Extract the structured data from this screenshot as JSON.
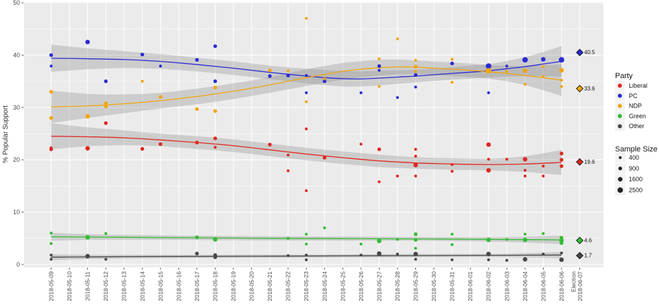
{
  "figure": {
    "y_axis": {
      "title": "% Popular Support",
      "ticks": [
        0,
        10,
        20,
        30,
        40,
        50
      ],
      "minor_ticks": [
        5,
        15,
        25,
        35,
        45
      ],
      "lim": [
        0,
        50
      ]
    },
    "x_axis": {
      "dates": [
        "2018-05-09",
        "2018-05-10",
        "2018-05-11",
        "2018-05-12",
        "2018-05-13",
        "2018-05-14",
        "2018-05-15",
        "2018-05-16",
        "2018-05-17",
        "2018-05-18",
        "2018-05-19",
        "2018-05-20",
        "2018-05-21",
        "2018-05-22",
        "2018-05-23",
        "2018-05-24",
        "2018-05-25",
        "2018-05-26",
        "2018-05-27",
        "2018-05-28",
        "2018-05-29",
        "2018-05-30",
        "2018-05-31",
        "2018-06-01",
        "2018-06-02",
        "2018-06-03",
        "2018-06-04",
        "2018-06-05",
        "2018-06-06"
      ],
      "election_label": [
        "Election",
        "2018-06-07"
      ]
    },
    "legend": {
      "party": {
        "title": "Party",
        "items": [
          {
            "label": "Liberal",
            "color": "#e0271f"
          },
          {
            "label": "PC",
            "color": "#2b2bd5"
          },
          {
            "label": "NDP",
            "color": "#f2a50c"
          },
          {
            "label": "Green",
            "color": "#32bd32"
          },
          {
            "label": "Other",
            "color": "#474747"
          }
        ]
      },
      "sample_size": {
        "title": "Sample Size",
        "items": [
          {
            "label": "400",
            "r": 2.1
          },
          {
            "label": "900",
            "r": 2.7
          },
          {
            "label": "1600",
            "r": 3.3
          },
          {
            "label": "2500",
            "r": 4.0
          }
        ]
      }
    },
    "colors": {
      "panel_bg": "#ebebeb",
      "grid": "#ffffff",
      "ribbon": "#8f8f8f",
      "tick_text": "#4a4a4a",
      "axis_title": "#2f2f2f"
    }
  },
  "chart_data": {
    "type": "scatter",
    "title": "",
    "xlabel": "",
    "ylabel": "% Popular Support",
    "ylim": [
      0,
      50
    ],
    "x_unit": "day index from 2018-05-09; 29 = election day 2018-06-07",
    "sample_sizes": [
      400,
      900,
      1600,
      2500
    ],
    "size_radii": [
      2.1,
      2.7,
      3.3,
      4.0
    ],
    "series": [
      {
        "name": "Liberal",
        "color": "#e0271f",
        "election_result": 19.6,
        "election_label": "19.6",
        "points": [
          [
            0,
            22.0,
            1
          ],
          [
            0,
            22.3,
            0
          ],
          [
            2,
            22.2,
            2
          ],
          [
            3,
            27.0,
            1
          ],
          [
            5,
            22.1,
            1
          ],
          [
            6,
            23.0,
            1
          ],
          [
            8,
            23.3,
            1
          ],
          [
            9,
            24.1,
            1
          ],
          [
            9,
            22.4,
            0
          ],
          [
            12,
            22.9,
            1
          ],
          [
            13,
            20.9,
            0
          ],
          [
            13,
            17.9,
            0
          ],
          [
            14,
            25.9,
            0
          ],
          [
            14,
            14.1,
            0
          ],
          [
            15,
            20.4,
            1
          ],
          [
            17,
            23.0,
            0
          ],
          [
            18,
            22.0,
            1
          ],
          [
            18,
            15.8,
            0
          ],
          [
            19,
            16.9,
            0
          ],
          [
            20,
            22.0,
            0
          ],
          [
            20,
            20.7,
            0
          ],
          [
            20,
            19.0,
            2
          ],
          [
            20,
            16.9,
            0
          ],
          [
            22,
            19.1,
            0
          ],
          [
            22,
            17.8,
            0
          ],
          [
            24,
            22.9,
            2
          ],
          [
            24,
            20.1,
            0
          ],
          [
            24,
            18.0,
            2
          ],
          [
            25,
            20.1,
            0
          ],
          [
            26,
            20.1,
            2
          ],
          [
            26,
            18.0,
            0
          ],
          [
            26,
            16.9,
            0
          ],
          [
            27,
            18.8,
            0
          ],
          [
            27,
            16.9,
            0
          ],
          [
            28,
            21.2,
            1
          ],
          [
            28,
            20.0,
            1
          ],
          [
            28,
            18.8,
            1
          ]
        ],
        "trend": [
          [
            0,
            24.5,
            2.5
          ],
          [
            2,
            24.4,
            1.8
          ],
          [
            4,
            24.2,
            1.4
          ],
          [
            6,
            23.8,
            1.2
          ],
          [
            8,
            23.3,
            1.2
          ],
          [
            10,
            22.7,
            1.2
          ],
          [
            12,
            21.9,
            1.2
          ],
          [
            14,
            21.1,
            1.2
          ],
          [
            16,
            20.4,
            1.2
          ],
          [
            18,
            19.8,
            1.2
          ],
          [
            20,
            19.4,
            1.1
          ],
          [
            22,
            19.2,
            1.1
          ],
          [
            24,
            19.1,
            1.1
          ],
          [
            26,
            19.2,
            1.5
          ],
          [
            28,
            19.5,
            2.4
          ]
        ]
      },
      {
        "name": "PC",
        "color": "#2b2bd5",
        "election_result": 40.5,
        "election_label": "40.5",
        "points": [
          [
            0,
            40.0,
            1
          ],
          [
            0,
            37.9,
            0
          ],
          [
            2,
            42.5,
            2
          ],
          [
            3,
            35.0,
            1
          ],
          [
            5,
            40.1,
            1
          ],
          [
            6,
            37.9,
            0
          ],
          [
            8,
            39.1,
            1
          ],
          [
            9,
            41.7,
            1
          ],
          [
            9,
            35.0,
            1
          ],
          [
            12,
            36.0,
            1
          ],
          [
            13,
            36.1,
            1
          ],
          [
            14,
            36.1,
            0
          ],
          [
            14,
            32.8,
            0
          ],
          [
            15,
            35.0,
            1
          ],
          [
            17,
            32.8,
            0
          ],
          [
            18,
            37.9,
            1
          ],
          [
            18,
            37.1,
            0
          ],
          [
            19,
            31.9,
            0
          ],
          [
            20,
            36.2,
            1
          ],
          [
            20,
            33.9,
            0
          ],
          [
            22,
            38.4,
            1
          ],
          [
            24,
            37.9,
            3
          ],
          [
            24,
            32.8,
            0
          ],
          [
            25,
            37.9,
            0
          ],
          [
            26,
            39.1,
            3
          ],
          [
            27,
            39.2,
            2
          ],
          [
            28,
            39.1,
            3
          ]
        ],
        "trend": [
          [
            0,
            39.4,
            2.6
          ],
          [
            2,
            39.3,
            2.0
          ],
          [
            4,
            39.15,
            1.6
          ],
          [
            6,
            38.8,
            1.4
          ],
          [
            8,
            38.2,
            1.3
          ],
          [
            10,
            37.5,
            1.3
          ],
          [
            12,
            36.7,
            1.3
          ],
          [
            14,
            36.0,
            1.4
          ],
          [
            15,
            35.7,
            1.45
          ],
          [
            16,
            35.5,
            1.5
          ],
          [
            17,
            35.45,
            1.45
          ],
          [
            18,
            35.6,
            1.4
          ],
          [
            19,
            35.8,
            1.3
          ],
          [
            20,
            36.0,
            1.2
          ],
          [
            22,
            36.5,
            1.2
          ],
          [
            24,
            37.0,
            1.3
          ],
          [
            25,
            37.4,
            1.5
          ],
          [
            26,
            37.8,
            1.8
          ],
          [
            27,
            38.3,
            2.3
          ],
          [
            28,
            38.8,
            2.9
          ]
        ]
      },
      {
        "name": "NDP",
        "color": "#f2a50c",
        "election_result": 33.6,
        "election_label": "33.6",
        "points": [
          [
            0,
            33.0,
            1
          ],
          [
            0,
            28.0,
            1
          ],
          [
            2,
            28.3,
            2
          ],
          [
            3,
            30.8,
            1
          ],
          [
            3,
            30.2,
            1
          ],
          [
            5,
            35.0,
            0
          ],
          [
            6,
            32.0,
            1
          ],
          [
            8,
            29.7,
            1
          ],
          [
            9,
            33.8,
            1
          ],
          [
            9,
            29.3,
            1
          ],
          [
            12,
            37.1,
            1
          ],
          [
            13,
            37.0,
            0
          ],
          [
            14,
            47.0,
            0
          ],
          [
            14,
            31.1,
            0
          ],
          [
            15,
            35.5,
            0
          ],
          [
            18,
            39.3,
            0
          ],
          [
            18,
            34.0,
            0
          ],
          [
            19,
            43.1,
            0
          ],
          [
            20,
            39.0,
            0
          ],
          [
            20,
            37.8,
            1
          ],
          [
            20,
            36.9,
            0
          ],
          [
            22,
            39.2,
            0
          ],
          [
            22,
            34.8,
            0
          ],
          [
            24,
            37.0,
            3
          ],
          [
            25,
            36.9,
            0
          ],
          [
            26,
            37.0,
            2
          ],
          [
            26,
            34.4,
            0
          ],
          [
            27,
            37.8,
            0
          ],
          [
            27,
            35.9,
            0
          ],
          [
            28,
            37.1,
            2
          ],
          [
            28,
            35.2,
            0
          ],
          [
            28,
            34.0,
            0
          ]
        ],
        "trend": [
          [
            0,
            30.1,
            3.1
          ],
          [
            2,
            30.3,
            2.3
          ],
          [
            4,
            30.7,
            1.8
          ],
          [
            6,
            31.3,
            1.5
          ],
          [
            8,
            32.1,
            1.5
          ],
          [
            10,
            33.1,
            1.5
          ],
          [
            12,
            34.3,
            1.5
          ],
          [
            14,
            35.7,
            1.6
          ],
          [
            15,
            36.3,
            1.6
          ],
          [
            16,
            36.9,
            1.6
          ],
          [
            17,
            37.3,
            1.55
          ],
          [
            18,
            37.6,
            1.5
          ],
          [
            19,
            37.75,
            1.4
          ],
          [
            20,
            37.7,
            1.3
          ],
          [
            21,
            37.5,
            1.3
          ],
          [
            22,
            37.3,
            1.3
          ],
          [
            23,
            37.1,
            1.3
          ],
          [
            24,
            36.8,
            1.3
          ],
          [
            25,
            36.5,
            1.5
          ],
          [
            26,
            36.1,
            1.8
          ],
          [
            27,
            35.7,
            2.4
          ],
          [
            28,
            35.2,
            3.0
          ]
        ]
      },
      {
        "name": "Green",
        "color": "#32bd32",
        "election_result": 4.6,
        "election_label": "4.6",
        "points": [
          [
            0,
            6.0,
            0
          ],
          [
            0,
            4.0,
            0
          ],
          [
            2,
            5.2,
            2
          ],
          [
            3,
            5.9,
            0
          ],
          [
            8,
            5.2,
            1
          ],
          [
            9,
            4.8,
            2
          ],
          [
            13,
            5.0,
            0
          ],
          [
            14,
            5.8,
            0
          ],
          [
            14,
            3.9,
            0
          ],
          [
            15,
            7.0,
            0
          ],
          [
            17,
            3.9,
            0
          ],
          [
            18,
            4.5,
            2
          ],
          [
            19,
            4.8,
            0
          ],
          [
            20,
            5.8,
            1
          ],
          [
            20,
            4.7,
            1
          ],
          [
            20,
            3.1,
            0
          ],
          [
            22,
            5.8,
            0
          ],
          [
            22,
            3.8,
            0
          ],
          [
            24,
            4.7,
            2
          ],
          [
            25,
            4.8,
            0
          ],
          [
            26,
            5.8,
            0
          ],
          [
            26,
            4.7,
            2
          ],
          [
            27,
            5.9,
            0
          ],
          [
            28,
            5.1,
            1
          ],
          [
            28,
            4.6,
            2
          ],
          [
            28,
            4.1,
            1
          ]
        ],
        "trend": [
          [
            0,
            5.3,
            0.75
          ],
          [
            2,
            5.25,
            0.55
          ],
          [
            4,
            5.2,
            0.45
          ],
          [
            8,
            5.1,
            0.4
          ],
          [
            12,
            5.0,
            0.4
          ],
          [
            16,
            4.95,
            0.4
          ],
          [
            20,
            4.9,
            0.35
          ],
          [
            24,
            4.8,
            0.4
          ],
          [
            26,
            4.75,
            0.55
          ],
          [
            28,
            4.7,
            0.8
          ]
        ]
      },
      {
        "name": "Other",
        "color": "#474747",
        "election_result": 1.7,
        "election_label": "1.7",
        "points": [
          [
            0,
            1.8,
            0
          ],
          [
            0,
            1.0,
            0
          ],
          [
            2,
            1.6,
            2
          ],
          [
            3,
            1.0,
            0
          ],
          [
            8,
            2.1,
            1
          ],
          [
            9,
            1.8,
            1
          ],
          [
            9,
            1.4,
            1
          ],
          [
            13,
            1.7,
            0
          ],
          [
            14,
            1.8,
            0
          ],
          [
            14,
            0.9,
            0
          ],
          [
            17,
            1.8,
            0
          ],
          [
            18,
            2.1,
            2
          ],
          [
            19,
            2.0,
            0
          ],
          [
            20,
            2.0,
            2
          ],
          [
            20,
            1.0,
            0
          ],
          [
            22,
            0.9,
            0
          ],
          [
            24,
            2.0,
            2
          ],
          [
            24,
            0.9,
            0
          ],
          [
            25,
            0.8,
            0
          ],
          [
            26,
            1.0,
            2
          ],
          [
            27,
            2.0,
            0
          ],
          [
            28,
            2.2,
            0
          ],
          [
            28,
            0.9,
            2
          ]
        ],
        "trend": [
          [
            0,
            1.4,
            0.55
          ],
          [
            2,
            1.45,
            0.4
          ],
          [
            4,
            1.5,
            0.35
          ],
          [
            8,
            1.55,
            0.3
          ],
          [
            12,
            1.6,
            0.3
          ],
          [
            16,
            1.65,
            0.3
          ],
          [
            20,
            1.7,
            0.3
          ],
          [
            24,
            1.75,
            0.3
          ],
          [
            26,
            1.78,
            0.4
          ],
          [
            28,
            1.8,
            0.6
          ]
        ]
      }
    ]
  }
}
